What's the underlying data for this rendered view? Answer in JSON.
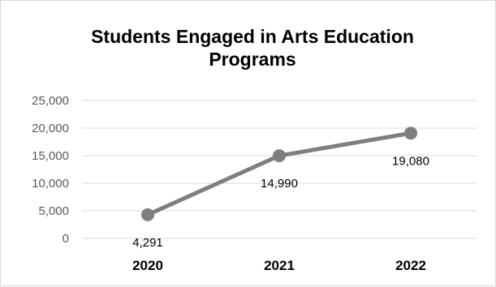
{
  "chart_data": {
    "type": "line",
    "title": "Students Engaged in Arts Education Programs",
    "categories": [
      "2020",
      "2021",
      "2022"
    ],
    "series": [
      {
        "values": [
          4291,
          14990,
          19080
        ],
        "data_labels": [
          "4,291",
          "14,990",
          "19,080"
        ]
      }
    ],
    "y_ticks": [
      "0",
      "5,000",
      "10,000",
      "15,000",
      "20,000",
      "25,000"
    ],
    "ylim": [
      0,
      25000
    ],
    "xlabel": "",
    "ylabel": "",
    "grid": true,
    "legend": "none",
    "colors": {
      "line": "#7f7f7f",
      "grid": "#d9d9d9",
      "tick_text": "#595959",
      "category_text": "#000000",
      "data_label_text": "#000000"
    }
  }
}
